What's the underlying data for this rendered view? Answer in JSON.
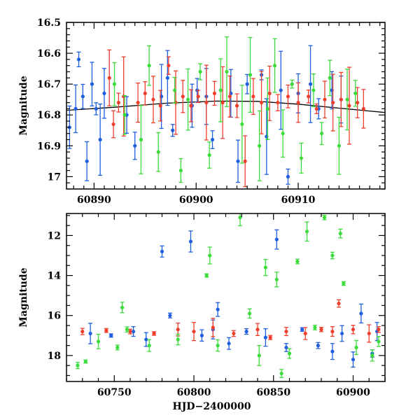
{
  "chart_data": [
    {
      "type": "scatter",
      "panel": "top",
      "xlabel": "",
      "ylabel": "Magnitude",
      "xlim": [
        60887.3,
        60918.5
      ],
      "ylim": [
        17.04,
        16.5
      ],
      "y_inverted": true,
      "x_ticks": [
        60890,
        60900,
        60910
      ],
      "x_tick_labels": [
        "60890",
        "60900",
        "60910"
      ],
      "y_ticks": [
        16.5,
        16.6,
        16.7,
        16.8,
        16.9,
        17.0
      ],
      "y_tick_labels": [
        "16.5",
        "16.6",
        "16.7",
        "16.8",
        "16.9",
        "17"
      ],
      "grid": false,
      "series": [
        {
          "color": "#1f5fe0",
          "marker": "circle",
          "error_bars": true,
          "points": [
            [
              60887.6,
              16.84
            ],
            [
              60888.2,
              16.78
            ],
            [
              60888.5,
              16.62
            ],
            [
              60888.9,
              16.74
            ],
            [
              60889.3,
              16.95
            ],
            [
              60889.8,
              16.7
            ],
            [
              60890.2,
              16.78
            ],
            [
              60890.6,
              16.88
            ],
            [
              60891.0,
              16.73
            ],
            [
              60893.2,
              16.8
            ],
            [
              60894.0,
              16.9
            ],
            [
              60896.6,
              16.74
            ],
            [
              60897.2,
              16.68
            ],
            [
              60897.7,
              16.85
            ],
            [
              60899.6,
              16.77
            ],
            [
              60900.1,
              16.72
            ],
            [
              60901.0,
              16.74
            ],
            [
              60901.6,
              16.88
            ],
            [
              60903.4,
              16.73
            ],
            [
              60904.1,
              16.95
            ],
            [
              60905.0,
              16.7
            ],
            [
              60906.4,
              16.67
            ],
            [
              60906.9,
              16.87
            ],
            [
              60908.3,
              16.72
            ],
            [
              60909.0,
              17.0
            ],
            [
              60910.0,
              16.73
            ],
            [
              60911.2,
              16.7
            ],
            [
              60912.0,
              16.78
            ],
            [
              60913.3,
              16.72
            ],
            [
              60914.2,
              16.75
            ]
          ]
        },
        {
          "color": "#ee3f2d",
          "marker": "circle",
          "error_bars": true,
          "points": [
            [
              60891.5,
              16.68
            ],
            [
              60891.9,
              16.83
            ],
            [
              60892.4,
              16.76
            ],
            [
              60892.9,
              16.74
            ],
            [
              60894.3,
              16.76
            ],
            [
              60895.0,
              16.73
            ],
            [
              60895.8,
              16.75
            ],
            [
              60896.5,
              16.77
            ],
            [
              60897.3,
              16.64
            ],
            [
              60898.0,
              16.76
            ],
            [
              60898.7,
              16.74
            ],
            [
              60899.5,
              16.77
            ],
            [
              60900.2,
              16.74
            ],
            [
              60901.0,
              16.76
            ],
            [
              60901.8,
              16.73
            ],
            [
              60902.6,
              16.76
            ],
            [
              60903.3,
              16.74
            ],
            [
              60904.0,
              16.77
            ],
            [
              60904.8,
              16.95
            ],
            [
              60905.6,
              16.74
            ],
            [
              60906.4,
              16.76
            ],
            [
              60907.2,
              16.73
            ],
            [
              60908.0,
              16.76
            ],
            [
              60909.0,
              16.74
            ],
            [
              60910.0,
              16.76
            ],
            [
              60911.0,
              16.74
            ],
            [
              60911.8,
              16.78
            ],
            [
              60912.6,
              16.75
            ],
            [
              60913.4,
              16.76
            ],
            [
              60914.2,
              16.75
            ],
            [
              60915.0,
              16.77
            ],
            [
              60915.8,
              16.76
            ],
            [
              60916.4,
              16.78
            ]
          ]
        },
        {
          "color": "#3cdc3c",
          "marker": "circle",
          "error_bars": true,
          "points": [
            [
              60892.0,
              16.7
            ],
            [
              60893.0,
              16.8
            ],
            [
              60894.6,
              16.88
            ],
            [
              60895.4,
              16.64
            ],
            [
              60896.3,
              16.92
            ],
            [
              60897.9,
              16.72
            ],
            [
              60898.5,
              16.98
            ],
            [
              60899.2,
              16.75
            ],
            [
              60900.4,
              16.66
            ],
            [
              60901.3,
              16.93
            ],
            [
              60902.4,
              16.72
            ],
            [
              60903.0,
              16.66
            ],
            [
              60904.5,
              16.83
            ],
            [
              60905.3,
              16.67
            ],
            [
              60906.2,
              16.9
            ],
            [
              60907.0,
              16.78
            ],
            [
              60907.7,
              16.64
            ],
            [
              60908.5,
              16.86
            ],
            [
              60909.4,
              16.7
            ],
            [
              60910.3,
              16.94
            ],
            [
              60911.5,
              16.72
            ],
            [
              60912.3,
              16.86
            ],
            [
              60913.1,
              16.68
            ],
            [
              60914.0,
              16.9
            ],
            [
              60914.8,
              16.75
            ],
            [
              60915.6,
              16.73
            ]
          ]
        }
      ],
      "model_curve": {
        "color": "#000000",
        "points": [
          [
            60887.3,
            16.785
          ],
          [
            60892,
            16.775
          ],
          [
            60897,
            16.762
          ],
          [
            60902,
            16.755
          ],
          [
            60906,
            16.756
          ],
          [
            60910,
            16.765
          ],
          [
            60914,
            16.778
          ],
          [
            60918.5,
            16.792
          ]
        ]
      }
    },
    {
      "type": "scatter",
      "panel": "bottom",
      "xlabel": "HJD−2400000",
      "ylabel": "Magnitude",
      "xlim": [
        60720,
        60920
      ],
      "ylim": [
        19.3,
        10.9
      ],
      "y_inverted": true,
      "x_ticks": [
        60750,
        60800,
        60850,
        60900
      ],
      "x_tick_labels": [
        "60750",
        "60800",
        "60850",
        "60900"
      ],
      "y_ticks": [
        12,
        14,
        16,
        18
      ],
      "y_tick_labels": [
        "12",
        "14",
        "16",
        "18"
      ],
      "grid": false,
      "series": [
        {
          "color": "#1f5fe0",
          "marker": "circle",
          "error_bars": true,
          "points": [
            [
              60735,
              16.9
            ],
            [
              60748,
              17.0
            ],
            [
              60762,
              16.8
            ],
            [
              60770,
              17.2
            ],
            [
              60780,
              12.8
            ],
            [
              60785,
              16.0
            ],
            [
              60798,
              12.3
            ],
            [
              60805,
              17.0
            ],
            [
              60812,
              16.7
            ],
            [
              60815,
              15.7
            ],
            [
              60822,
              17.4
            ],
            [
              60833,
              16.8
            ],
            [
              60845,
              17.1
            ],
            [
              60852,
              12.2
            ],
            [
              60858,
              17.6
            ],
            [
              60868,
              16.7
            ],
            [
              60878,
              17.5
            ],
            [
              60887,
              17.8
            ],
            [
              60893,
              16.9
            ],
            [
              60900,
              18.2
            ],
            [
              60905,
              15.9
            ],
            [
              60912,
              17.9
            ],
            [
              60915,
              16.8
            ]
          ]
        },
        {
          "color": "#ee3f2d",
          "marker": "circle",
          "error_bars": true,
          "points": [
            [
              60730,
              16.8
            ],
            [
              60745,
              16.75
            ],
            [
              60760,
              16.8
            ],
            [
              60775,
              16.9
            ],
            [
              60790,
              16.7
            ],
            [
              60800,
              16.8
            ],
            [
              60812,
              16.6
            ],
            [
              60825,
              16.9
            ],
            [
              60840,
              16.7
            ],
            [
              60848,
              17.1
            ],
            [
              60858,
              16.8
            ],
            [
              60870,
              16.9
            ],
            [
              60880,
              16.7
            ],
            [
              60887,
              16.8
            ],
            [
              60891,
              15.4
            ],
            [
              60900,
              16.7
            ],
            [
              60910,
              16.9
            ],
            [
              60916,
              16.7
            ]
          ]
        },
        {
          "color": "#3cdc3c",
          "marker": "circle",
          "error_bars": true,
          "points": [
            [
              60727,
              18.5
            ],
            [
              60732,
              18.3
            ],
            [
              60740,
              17.3
            ],
            [
              60752,
              17.6
            ],
            [
              60755,
              15.6
            ],
            [
              60758,
              16.7
            ],
            [
              60772,
              17.5
            ],
            [
              60790,
              17.2
            ],
            [
              60808,
              14.0
            ],
            [
              60810,
              13.0
            ],
            [
              60815,
              17.5
            ],
            [
              60829,
              11.1
            ],
            [
              60835,
              15.9
            ],
            [
              60841,
              18.0
            ],
            [
              60845,
              13.6
            ],
            [
              60852,
              14.2
            ],
            [
              60855,
              18.9
            ],
            [
              60860,
              17.9
            ],
            [
              60865,
              13.3
            ],
            [
              60871,
              11.8
            ],
            [
              60876,
              16.6
            ],
            [
              60882,
              11.1
            ],
            [
              60887,
              13.0
            ],
            [
              60892,
              11.9
            ],
            [
              60894,
              14.4
            ],
            [
              60902,
              17.6
            ],
            [
              60912,
              18.0
            ],
            [
              60916,
              17.3
            ]
          ]
        }
      ]
    }
  ]
}
